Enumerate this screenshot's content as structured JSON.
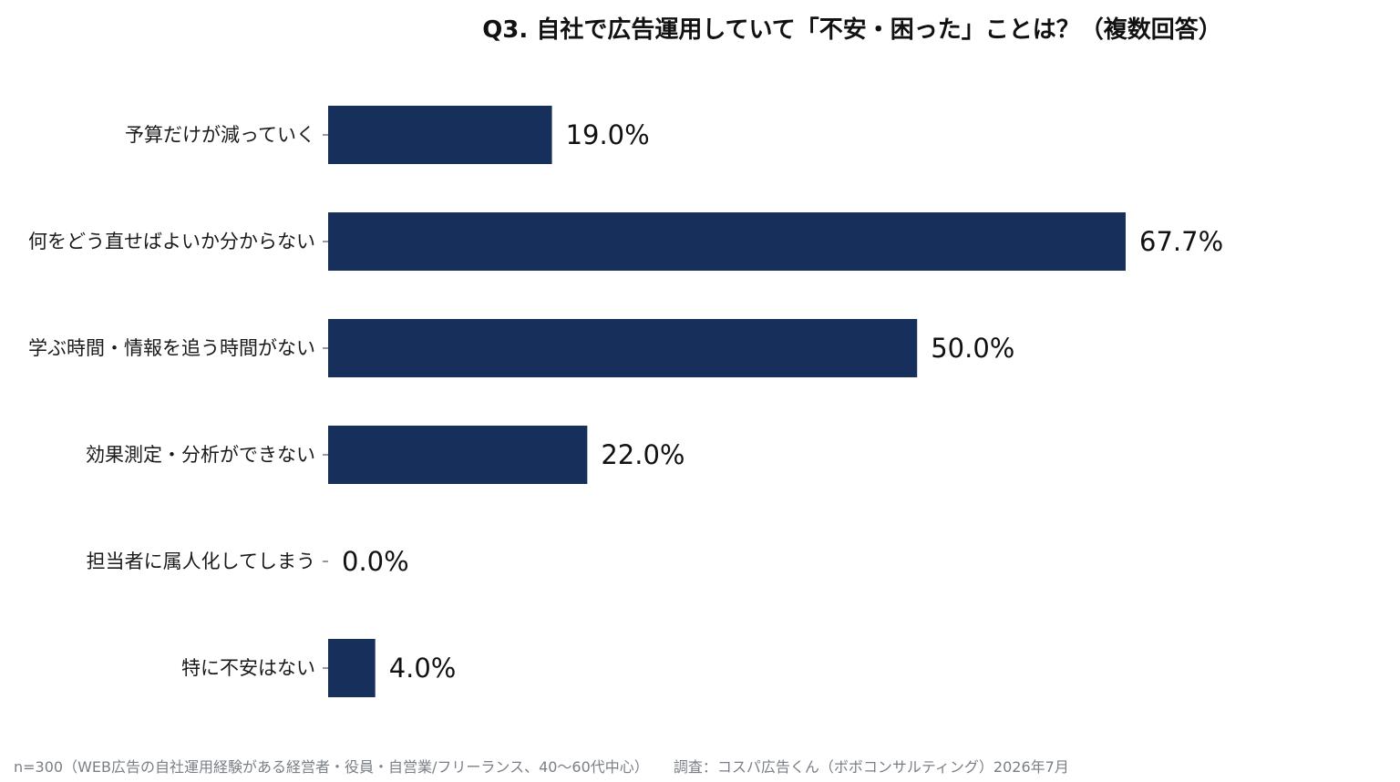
{
  "chart_data": {
    "type": "bar",
    "orientation": "horizontal",
    "title": "Q3. 自社で広告運用していて「不安・困った」ことは？（複数回答）",
    "categories": [
      "予算だけが減っていく",
      "何をどう直せばよいか分からない",
      "学ぶ時間・情報を追う時間がない",
      "効果測定・分析ができない",
      "担当者に属人化してしまう",
      "特に不安はない"
    ],
    "values": [
      19.0,
      67.7,
      50.0,
      22.0,
      0.0,
      4.0
    ],
    "value_labels": [
      "19.0%",
      "67.7%",
      "50.0%",
      "22.0%",
      "0.0%",
      "4.0%"
    ],
    "unit": "%",
    "xlim": [
      0,
      100
    ],
    "grid": false,
    "legend": "none",
    "bar_color": "#172f5b"
  },
  "footnote": {
    "sample": "n=300（WEB広告の自社運用経験がある経営者・役員・自営業/フリーランス、40〜60代中心）",
    "source": "調査：コスパ広告くん（ボボコンサルティング）2026年7月"
  }
}
